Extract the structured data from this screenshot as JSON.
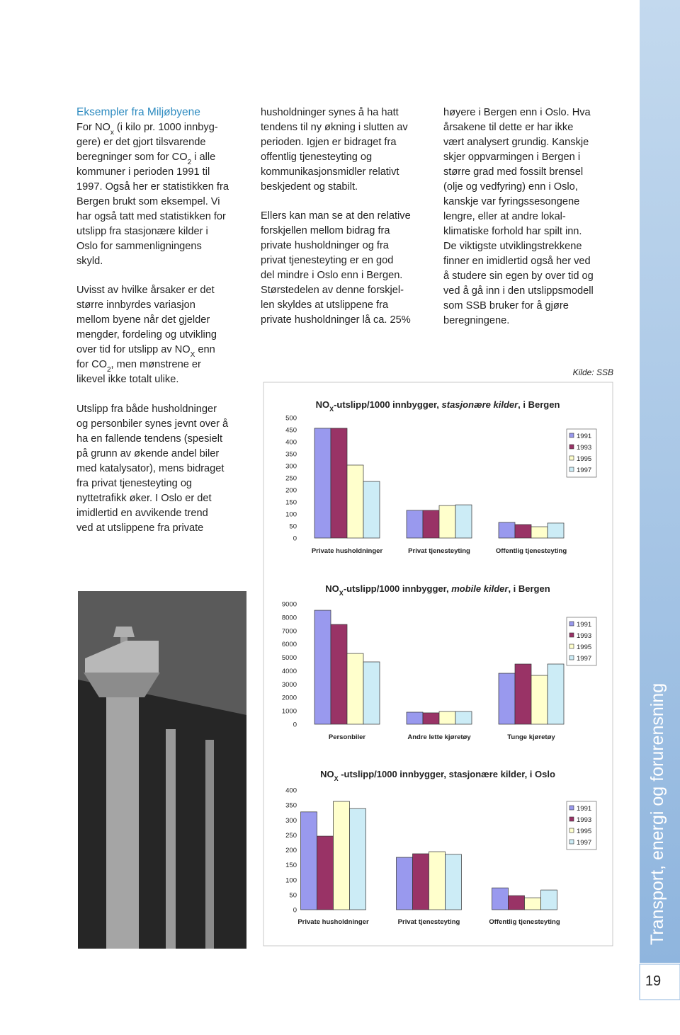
{
  "document": {
    "heading": "Eksempler fra Miljøbyene",
    "left_paragraphs": [
      [
        [
          "For NO",
          {
            "sub": "x"
          },
          " (i kilo pr. 1000 innbyg-"
        ],
        "gere) er det gjort tilsvarende",
        [
          "beregninger som for CO",
          {
            "sub": "2"
          },
          " i alle"
        ],
        "kommuner i perioden 1991 til",
        "1997. Også her er statistikken fra",
        "Bergen brukt som eksempel. Vi",
        "har også tatt med statistikken for",
        "utslipp fra stasjonære kilder i",
        "Oslo for sammenligningens",
        "skyld."
      ],
      [
        "Uvisst av hvilke årsaker er det",
        "større innbyrdes variasjon",
        "mellom byene når det gjelder",
        "mengder, fordeling og utvikling",
        [
          "over tid for utslipp av NO",
          {
            "sub": "X"
          },
          " enn"
        ],
        [
          "for CO",
          {
            "sub": "2"
          },
          ", men mønstrene er"
        ],
        "likevel ikke totalt ulike."
      ],
      [
        "Utslipp fra både husholdninger",
        "og personbiler synes jevnt over å",
        "ha en fallende tendens (spesielt",
        "på grunn av økende andel biler",
        "med katalysator), mens bidraget",
        "fra privat tjenesteyting og",
        "nyttetrafikk øker. I Oslo er det",
        "imidlertid en avvikende trend",
        "ved at utslippene fra private"
      ]
    ],
    "middle_paragraphs": [
      [
        "husholdninger synes å ha hatt",
        "tendens til ny økning i slutten av",
        "perioden. Igjen er bidraget fra",
        "offentlig tjenesteyting og",
        "kommunikasjonsmidler relativt",
        "beskjedent og stabilt."
      ],
      [
        "Ellers kan man se at den relative",
        "forskjellen mellom bidrag fra",
        "private husholdninger og fra",
        "privat tjenesteyting er en god",
        "del mindre i Oslo enn i Bergen.",
        "Størstedelen av denne forskjel-",
        "len skyldes at utslippene fra",
        "private husholdninger lå ca. 25%"
      ]
    ],
    "right_paragraphs": [
      [
        "høyere i Bergen enn i Oslo. Hva",
        "årsakene til dette er har ikke",
        "vært analysert grundig. Kanskje",
        "skjer oppvarmingen i Bergen i",
        "større grad med fossilt brensel",
        "(olje og vedfyring) enn i Oslo,",
        "kanskje var fyringssesongene",
        "lengre,  eller at andre lokal-",
        "klimatiske forhold har spilt inn.",
        "De viktigste utviklingstrekkene",
        "finner en imidlertid også her ved",
        "å studere sin egen by over tid og",
        "ved å gå inn i den utslippsmodell",
        "som SSB bruker for å gjøre",
        "beregningene."
      ]
    ],
    "source": "Kilde: SSB",
    "sidebar_title": "Transport, energi og forurensning",
    "page_number": "19"
  },
  "chart_data": [
    {
      "type": "bar",
      "title": [
        {
          "text": "NO"
        },
        {
          "text": "X",
          "sub": true
        },
        {
          "text": "-utslipp/1000 innbygger, "
        },
        {
          "text": "stasjonære kilder",
          "italic": true
        },
        {
          "text": ", i Bergen"
        }
      ],
      "categories": [
        "Private husholdninger",
        "Privat tjenesteyting",
        "Offentlig tjenesteyting"
      ],
      "series": [
        {
          "name": "1991",
          "color": "#9999ee",
          "values": [
            456,
            115,
            65
          ]
        },
        {
          "name": "1993",
          "color": "#993366",
          "values": [
            456,
            115,
            56
          ]
        },
        {
          "name": "1995",
          "color": "#ffffcc",
          "values": [
            303,
            135,
            47
          ]
        },
        {
          "name": "1997",
          "color": "#ccecf6",
          "values": [
            235,
            138,
            62
          ]
        }
      ],
      "ylim": [
        0,
        500
      ],
      "yticks": [
        0,
        50,
        100,
        150,
        200,
        250,
        300,
        350,
        400,
        450,
        500
      ]
    },
    {
      "type": "bar",
      "title": [
        {
          "text": "NO"
        },
        {
          "text": "X",
          "sub": true
        },
        {
          "text": "-utslipp/1000 innbygger, "
        },
        {
          "text": "mobile kilder",
          "italic": true
        },
        {
          "text": ", i Bergen"
        }
      ],
      "categories": [
        "Personbiler",
        "Andre lette kjøretøy",
        "Tunge kjøretøy"
      ],
      "series": [
        {
          "name": "1991",
          "color": "#9999ee",
          "values": [
            8520,
            900,
            3810
          ]
        },
        {
          "name": "1993",
          "color": "#993366",
          "values": [
            7460,
            850,
            4500
          ]
        },
        {
          "name": "1995",
          "color": "#ffffcc",
          "values": [
            5290,
            950,
            3650
          ]
        },
        {
          "name": "1997",
          "color": "#ccecf6",
          "values": [
            4660,
            950,
            4500
          ]
        }
      ],
      "ylim": [
        0,
        9000
      ],
      "yticks": [
        0,
        1000,
        2000,
        3000,
        4000,
        5000,
        6000,
        7000,
        8000,
        9000
      ]
    },
    {
      "type": "bar",
      "title": [
        {
          "text": "NO"
        },
        {
          "text": "X",
          "sub": true
        },
        {
          "text": " -utslipp/1000 innbygger, stasjonære kilder, i Oslo"
        }
      ],
      "categories": [
        "Private husholdninger",
        "Privat tjenesteyting",
        "Offentlig tjenesteyting"
      ],
      "series": [
        {
          "name": "1991",
          "color": "#9999ee",
          "values": [
            327,
            175,
            73
          ]
        },
        {
          "name": "1993",
          "color": "#993366",
          "values": [
            246,
            187,
            47
          ]
        },
        {
          "name": "1995",
          "color": "#ffffcc",
          "values": [
            362,
            194,
            40
          ]
        },
        {
          "name": "1997",
          "color": "#ccecf6",
          "values": [
            338,
            185,
            66
          ]
        }
      ],
      "ylim": [
        0,
        400
      ],
      "yticks": [
        0,
        50,
        100,
        150,
        200,
        250,
        300,
        350,
        400
      ]
    }
  ]
}
